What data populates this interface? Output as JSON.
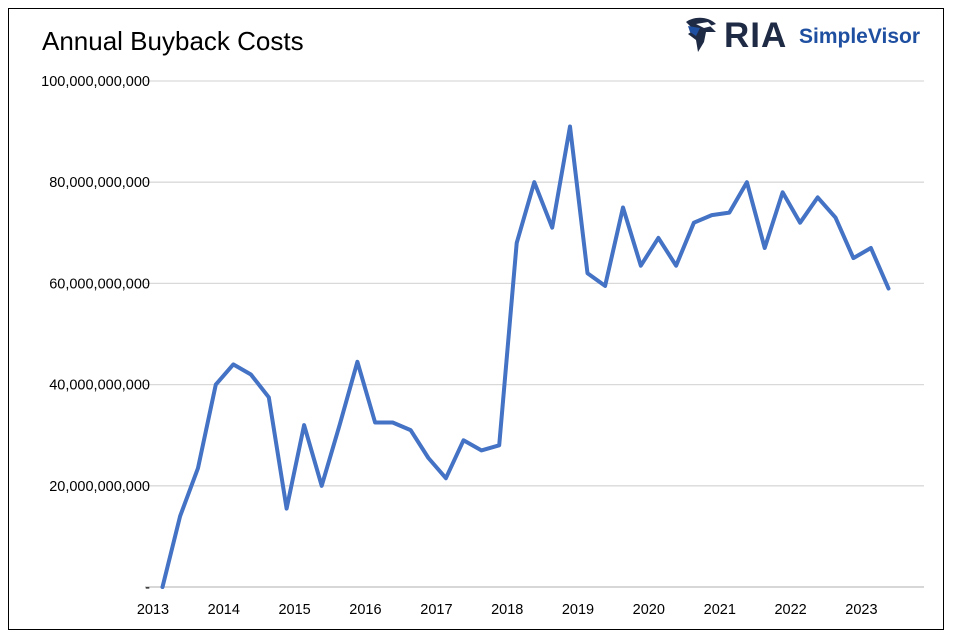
{
  "logo": {
    "brand": "RIA",
    "product": "SimpleVisor",
    "colors": {
      "brand": "#1f2a44",
      "product": "#1f4fa0"
    }
  },
  "chart_data": {
    "type": "line",
    "title": "Annual Buyback Costs",
    "xlabel": "",
    "ylabel": "",
    "ylim": [
      0,
      100000000000
    ],
    "xlim": [
      "2013-01-01",
      "2023-12-31"
    ],
    "yticks": [
      0,
      20000000000,
      40000000000,
      60000000000,
      80000000000,
      100000000000
    ],
    "ytick_labels": [
      "-",
      "20,000,000,000",
      "40,000,000,000",
      "60,000,000,000",
      "80,000,000,000",
      "100,000,000,000"
    ],
    "xticks": [
      "2013",
      "2014",
      "2015",
      "2016",
      "2017",
      "2018",
      "2019",
      "2020",
      "2021",
      "2022",
      "2023"
    ],
    "grid": "horizontal",
    "legend": "none",
    "colors": {
      "line": "#4472c4",
      "grid": "#d9d9d9",
      "axis": "#bfbfbf"
    },
    "series": [
      {
        "x": [
          "2013-04-01",
          "2013-07-01",
          "2013-10-01",
          "2014-01-01",
          "2014-04-01",
          "2014-07-01",
          "2014-10-01",
          "2015-01-01",
          "2015-04-01",
          "2015-07-01",
          "2015-10-01",
          "2016-01-01",
          "2016-04-01",
          "2016-07-01",
          "2016-10-01",
          "2017-01-01",
          "2017-04-01",
          "2017-07-01",
          "2017-10-01",
          "2018-01-01",
          "2018-04-01",
          "2018-07-01",
          "2018-10-01",
          "2019-01-01",
          "2019-04-01",
          "2019-07-01",
          "2019-10-01",
          "2020-01-01",
          "2020-04-01",
          "2020-07-01",
          "2020-10-01",
          "2021-01-01",
          "2021-04-01",
          "2021-07-01",
          "2021-10-01",
          "2022-01-01",
          "2022-04-01",
          "2022-07-01",
          "2022-10-01",
          "2023-01-01",
          "2023-04-01",
          "2023-07-01"
        ],
        "values": [
          0,
          14000000000,
          23500000000,
          40000000000,
          44000000000,
          42000000000,
          37500000000,
          15500000000,
          32000000000,
          20000000000,
          32000000000,
          44500000000,
          32500000000,
          32500000000,
          31000000000,
          25500000000,
          21500000000,
          29000000000,
          27000000000,
          28000000000,
          68000000000,
          80000000000,
          71000000000,
          91000000000,
          62000000000,
          59500000000,
          75000000000,
          63500000000,
          69000000000,
          63500000000,
          72000000000,
          73500000000,
          74000000000,
          80000000000,
          67000000000,
          78000000000,
          72000000000,
          77000000000,
          73000000000,
          65000000000,
          67000000000,
          59000000000
        ]
      }
    ]
  }
}
